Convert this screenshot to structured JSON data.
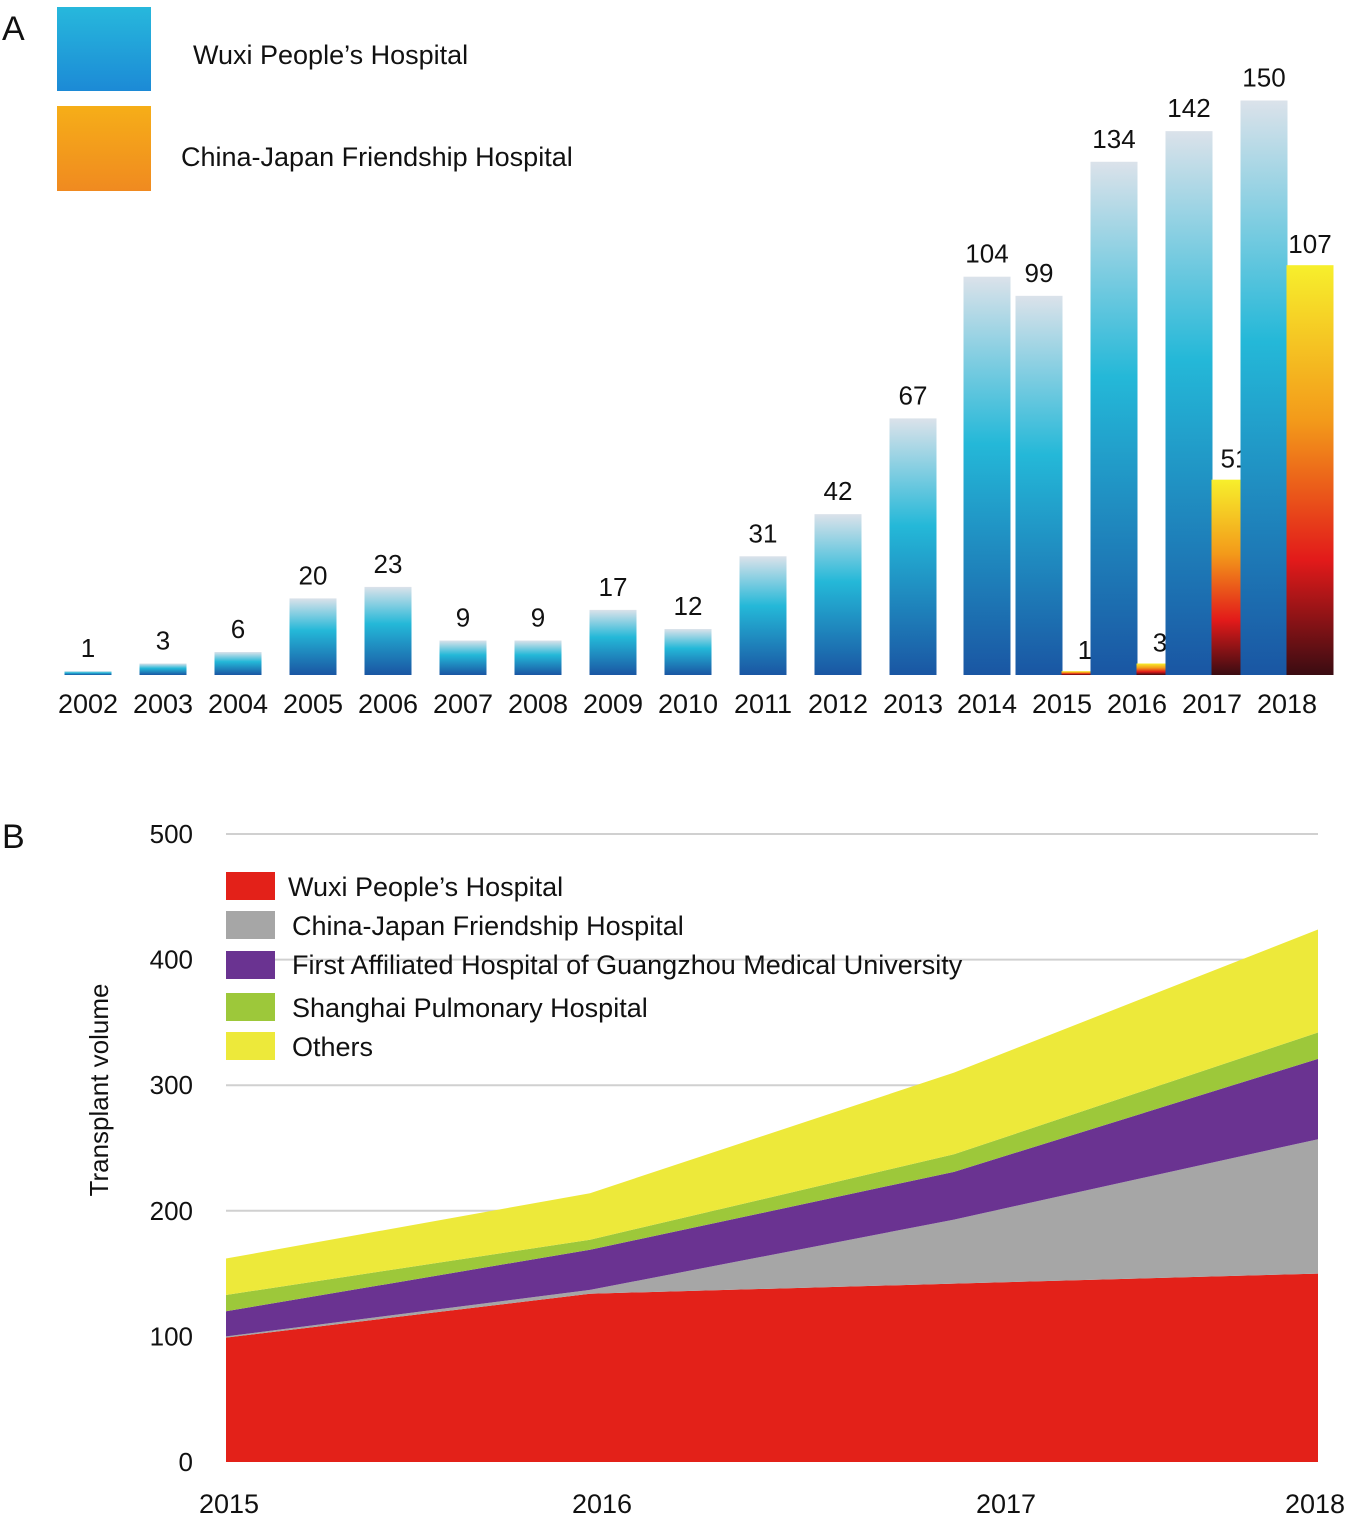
{
  "chart_data": [
    {
      "panel_label": "A",
      "type": "bar",
      "categories": [
        "2002",
        "2003",
        "2004",
        "2005",
        "2006",
        "2007",
        "2008",
        "2009",
        "2010",
        "2011",
        "2012",
        "2013",
        "2014",
        "2015",
        "2016",
        "2017",
        "2018"
      ],
      "series": [
        {
          "name": "Wuxi People’s Hospital",
          "values": [
            1,
            3,
            6,
            20,
            23,
            9,
            9,
            17,
            12,
            31,
            42,
            67,
            104,
            99,
            134,
            142,
            150
          ],
          "labels": [
            "1",
            "3",
            "6",
            "20",
            "23",
            "9",
            "9",
            "17",
            "12",
            "31",
            "42",
            "67",
            "104",
            "99",
            "134",
            "142",
            "150"
          ]
        },
        {
          "name": "China-Japan Friendship Hospital",
          "values": [
            null,
            null,
            null,
            null,
            null,
            null,
            null,
            null,
            null,
            null,
            null,
            null,
            null,
            1,
            3,
            51,
            107
          ],
          "labels": [
            "",
            "",
            "",
            "",
            "",
            "",
            "",
            "",
            "",
            "",
            "",
            "",
            "",
            "1",
            "3",
            "51",
            "107"
          ]
        }
      ],
      "ylim": [
        0,
        155
      ],
      "legend": "top-left",
      "grid": false
    },
    {
      "panel_label": "B",
      "type": "area",
      "stacked": true,
      "x": [
        "2015",
        "2016",
        "2017",
        "2018"
      ],
      "series": [
        {
          "name": "Wuxi People’s Hospital",
          "values": [
            99,
            134,
            142,
            150
          ]
        },
        {
          "name": "China-Japan Friendship Hospital",
          "values": [
            1,
            3,
            51,
            107
          ]
        },
        {
          "name": "First Affiliated Hospital of Guangzhou Medical University",
          "values": [
            20,
            32,
            38,
            64
          ]
        },
        {
          "name": "Shanghai Pulmonary Hospital",
          "values": [
            13,
            8,
            14,
            21
          ]
        },
        {
          "name": "Others",
          "values": [
            29,
            37,
            65,
            82
          ]
        }
      ],
      "ylabel": "Transplant volume",
      "ylim": [
        0,
        500
      ],
      "yticks": [
        "0",
        "100",
        "200",
        "300",
        "400",
        "500"
      ],
      "legend": "top-left",
      "grid": true
    }
  ],
  "colors": {
    "wuxi_bar_top": "#d9e1ea",
    "wuxi_bar_mid": "#22b6d6",
    "wuxi_bar_bottom": "#1a5aa6",
    "cjfh_bar_top": "#f5ee2a",
    "cjfh_bar_mid": "#e21b1b",
    "cjfh_bar_bottom": "#3a0c12",
    "legend_blue": "#1f9fd9",
    "legend_orange": "#f39a1a",
    "area_wuxi": "#e32119",
    "area_cjfh": "#a6a6a6",
    "area_guangzhou": "#6a3391",
    "area_shanghai": "#9dc83a",
    "area_others": "#ede93a",
    "grid": "#d0d0d0"
  }
}
